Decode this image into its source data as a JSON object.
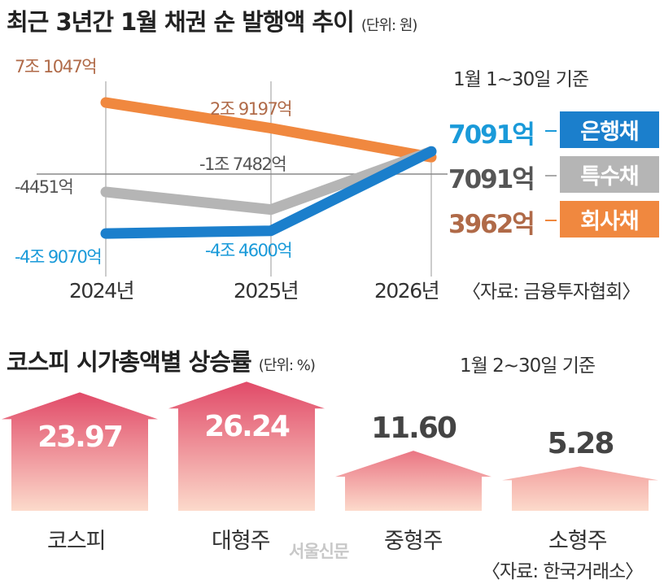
{
  "chart_data": [
    {
      "type": "line",
      "title": "최근 3년간 1월 채권 순 발행액 추이",
      "unit": "(단위: 원)",
      "note": "1월 1~30일 기준",
      "source": "〈자료: 금융투자협회〉",
      "categories": [
        "2024년",
        "2025년",
        "2026년"
      ],
      "series": [
        {
          "name": "회사채",
          "color": "#f0883f",
          "labelColor": "#b06a48",
          "values": [
            71047,
            29197,
            3962
          ],
          "labels": [
            "7조 1047억",
            "2조 9197억",
            "3962억"
          ]
        },
        {
          "name": "특수채",
          "color": "#b5b5b5",
          "labelColor": "#555555",
          "values": [
            -4451,
            -17482,
            7091
          ],
          "labels": [
            "-4451억",
            "-1조 7482억",
            "7091억"
          ]
        },
        {
          "name": "은행채",
          "color": "#1b7fcc",
          "labelColor": "#1a9ad9",
          "values": [
            -49070,
            -44600,
            7091
          ],
          "labels": [
            "-4조 9070억",
            "-4조 4600억",
            "7091억"
          ]
        }
      ]
    },
    {
      "type": "bar",
      "title": "코스피 시가총액별 상승률",
      "unit": "(단위: %)",
      "note": "1월 2~30일 기준",
      "source": "〈자료: 한국거래소〉",
      "categories": [
        "코스피",
        "대형주",
        "중형주",
        "소형주"
      ],
      "values": [
        23.97,
        26.24,
        11.6,
        5.28
      ],
      "labels": [
        "23.97",
        "26.24",
        "11.60",
        "5.28"
      ]
    }
  ],
  "watermark": "서울신문"
}
